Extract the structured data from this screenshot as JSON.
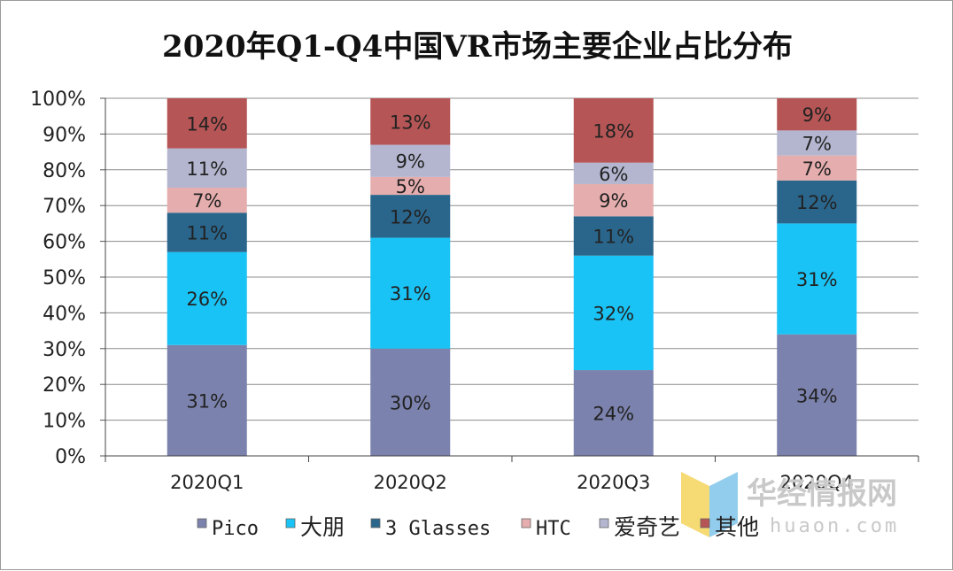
{
  "chart_data": {
    "type": "bar",
    "stacked": true,
    "title": "2020年Q1-Q4中国VR市场主要企业占比分布",
    "xlabel": "",
    "ylabel": "",
    "ylim": [
      0,
      100
    ],
    "yticks": [
      "0%",
      "10%",
      "20%",
      "30%",
      "40%",
      "50%",
      "60%",
      "70%",
      "80%",
      "90%",
      "100%"
    ],
    "categories": [
      "2020Q1",
      "2020Q2",
      "2020Q3",
      "2020Q4"
    ],
    "grid": true,
    "legend_position": "bottom",
    "series": [
      {
        "name": "Pico",
        "color": "#7b82ad",
        "values": [
          31,
          30,
          24,
          34
        ],
        "labels": [
          "31%",
          "30%",
          "24%",
          "34%"
        ]
      },
      {
        "name": "大朋",
        "color": "#19c3f5",
        "values": [
          26,
          31,
          32,
          31
        ],
        "labels": [
          "26%",
          "31%",
          "32%",
          "31%"
        ]
      },
      {
        "name": "3 Glasses",
        "color": "#2a668c",
        "values": [
          11,
          12,
          11,
          12
        ],
        "labels": [
          "11%",
          "12%",
          "11%",
          "12%"
        ]
      },
      {
        "name": "HTC",
        "color": "#e5adad",
        "values": [
          7,
          5,
          9,
          7
        ],
        "labels": [
          "7%",
          "5%",
          "9%",
          "7%"
        ]
      },
      {
        "name": "爱奇艺",
        "color": "#b4b6cf",
        "values": [
          11,
          9,
          6,
          7
        ],
        "labels": [
          "11%",
          "9%",
          "6%",
          "7%"
        ]
      },
      {
        "name": "其他",
        "color": "#b65555",
        "values": [
          14,
          13,
          18,
          9
        ],
        "labels": [
          "14%",
          "13%",
          "18%",
          "9%"
        ]
      }
    ]
  },
  "watermark": {
    "text": "华经情报网",
    "sub": "huaon.com"
  }
}
